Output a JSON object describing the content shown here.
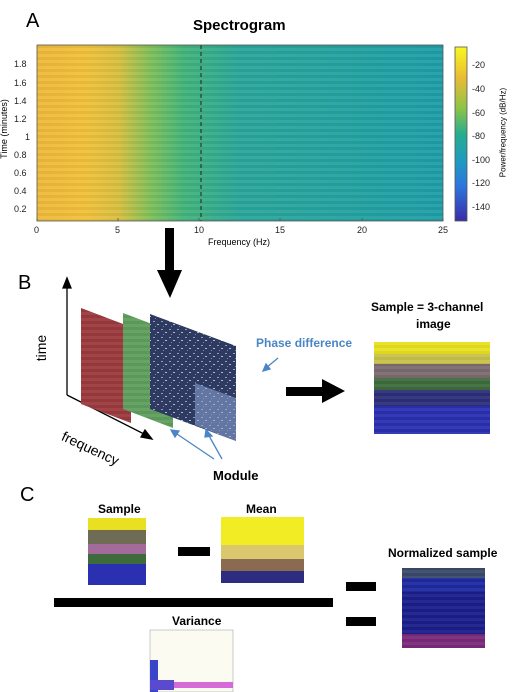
{
  "panel_a": {
    "letter": "A",
    "title": "Spectrogram",
    "xlabel": "Frequency (Hz)",
    "ylabel": "Time (minutes)",
    "cbar_label": "Power/frequency (dB/Hz)",
    "x_ticks": [
      "0",
      "5",
      "10",
      "15",
      "20",
      "25"
    ],
    "y_ticks": [
      "1.8",
      "1.6",
      "1.4",
      "1.2",
      "1",
      "0.8",
      "0.6",
      "0.4",
      "0.2"
    ],
    "cbar_ticks": [
      "-20",
      "-40",
      "-60",
      "-80",
      "-100",
      "-120",
      "-140"
    ],
    "colors": {
      "high": "#f5c431",
      "mid": "#24a6a5",
      "low": "#3a3fd5",
      "max": "#f9f71e"
    }
  },
  "panel_b": {
    "letter": "B",
    "time_label": "time",
    "frequency_label": "frequency",
    "module_label": "Module",
    "phase_label": "Phase difference",
    "sample_label_line1": "Sample = 3-channel",
    "sample_label_line2": "image",
    "colors": {
      "red_channel": "#9b3a3e",
      "green_channel": "#5f9e5d",
      "blue_channel": "#2f3f6a",
      "phase_text": "#4a86c5",
      "arrow_blue": "#4a86c5"
    }
  },
  "panel_c": {
    "letter": "C",
    "sample_label": "Sample",
    "mean_label": "Mean",
    "variance_label": "Variance",
    "normalized_label": "Normalized sample"
  }
}
